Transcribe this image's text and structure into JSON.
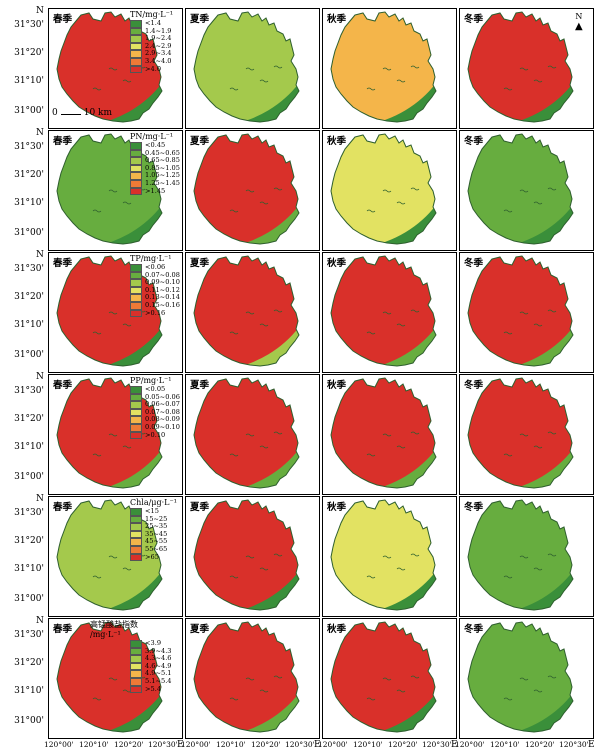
{
  "axes": {
    "y_label": "N",
    "x_label": "E",
    "lat_ticks": [
      "31°30'",
      "31°20'",
      "31°10'",
      "31°00'"
    ],
    "lon_ticks": [
      "120°00'",
      "120°10'",
      "120°20'",
      "120°30'"
    ]
  },
  "seasons": [
    "春季",
    "夏季",
    "秋季",
    "冬季"
  ],
  "scalebar": {
    "start": "0",
    "end": "10 km"
  },
  "north": "N",
  "rows": [
    {
      "key": "tn",
      "legend_title": "TN/mg·L⁻¹",
      "items": [
        "<1.4",
        "1.4~1.9",
        "1.9~2.4",
        "2.4~2.9",
        "2.9~3.4",
        "3.4~4.0",
        ">4.0"
      ]
    },
    {
      "key": "pn",
      "legend_title": "PN/mg·L⁻¹",
      "items": [
        "<0.45",
        "0.45~0.65",
        "0.65~0.85",
        "0.85~1.05",
        "1.05~1.25",
        "1.25~1.45",
        ">1.45"
      ]
    },
    {
      "key": "tp",
      "legend_title": "TP/mg·L⁻¹",
      "items": [
        "<0.06",
        "0.07~0.08",
        "0.09~0.10",
        "0.11~0.12",
        "0.13~0.14",
        "0.15~0.16",
        ">0.16"
      ]
    },
    {
      "key": "pp",
      "legend_title": "PP/mg·L⁻¹",
      "items": [
        "<0.05",
        "0.05~0.06",
        "0.06~0.07",
        "0.07~0.08",
        "0.08~0.09",
        "0.09~0.10",
        ">0.10"
      ]
    },
    {
      "key": "chla",
      "legend_title": "Chla/μg·L⁻¹",
      "items": [
        "<15",
        "15~25",
        "25~35",
        "35~45",
        "45~55",
        "55~65",
        ">65"
      ]
    },
    {
      "key": "codmn",
      "legend_title": "高锰酸盐指数",
      "legend_title2": "/mg·L⁻¹",
      "items": [
        "<3.9",
        "3.9~4.3",
        "4.3~4.6",
        "4.6~4.9",
        "4.9~5.1",
        "5.1~5.4",
        ">5.4"
      ]
    }
  ],
  "legend_colors": [
    "#3a8f3a",
    "#67ad3f",
    "#a4c94c",
    "#e2e262",
    "#f4b54a",
    "#ee7a36",
    "#d9302a"
  ],
  "panel_levels": [
    [
      [
        6,
        5,
        4,
        2,
        1,
        0
      ],
      [
        2,
        1,
        0,
        0,
        0,
        0
      ],
      [
        4,
        3,
        2,
        1,
        0,
        0
      ],
      [
        6,
        4,
        3,
        2,
        1,
        0
      ]
    ],
    [
      [
        1,
        0,
        0,
        0,
        0,
        0
      ],
      [
        6,
        5,
        4,
        3,
        2,
        1
      ],
      [
        3,
        2,
        1,
        1,
        0,
        0
      ],
      [
        1,
        1,
        2,
        3,
        1,
        0
      ]
    ],
    [
      [
        6,
        3,
        2,
        1,
        1,
        0
      ],
      [
        6,
        6,
        5,
        4,
        3,
        2
      ],
      [
        6,
        6,
        5,
        4,
        2,
        1
      ],
      [
        6,
        5,
        4,
        3,
        2,
        1
      ]
    ],
    [
      [
        6,
        5,
        4,
        3,
        2,
        1
      ],
      [
        6,
        6,
        5,
        3,
        2,
        1
      ],
      [
        6,
        5,
        4,
        3,
        2,
        1
      ],
      [
        6,
        6,
        5,
        4,
        2,
        1
      ]
    ],
    [
      [
        2,
        1,
        0,
        0,
        0,
        0
      ],
      [
        6,
        5,
        3,
        2,
        1,
        0
      ],
      [
        3,
        2,
        1,
        0,
        0,
        0
      ],
      [
        1,
        0,
        0,
        0,
        0,
        0
      ]
    ],
    [
      [
        6,
        3,
        1,
        0,
        0,
        0
      ],
      [
        6,
        6,
        5,
        4,
        3,
        1
      ],
      [
        6,
        4,
        3,
        2,
        1,
        0
      ],
      [
        1,
        0,
        0,
        0,
        0,
        0
      ]
    ]
  ]
}
